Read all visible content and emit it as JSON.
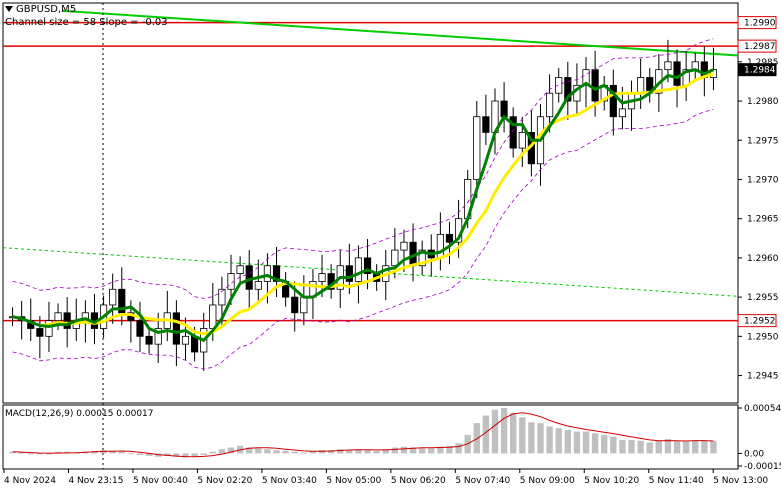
{
  "header": {
    "symbol": "GBPUSD,M5",
    "channel_info": "Channel size = 58 Slope = -0.03"
  },
  "macd": {
    "label": "MACD(12,26,9) 0.00015 0.00017",
    "axis": [
      "0.00054",
      "0.00",
      "-0.00015"
    ]
  },
  "price_axis": {
    "ticks": [
      "1.2985",
      "1.2980",
      "1.2975",
      "1.2970",
      "1.2965",
      "1.2960",
      "1.2955",
      "1.2950",
      "1.2945"
    ],
    "tags": [
      {
        "value": "1.2990",
        "style": "red"
      },
      {
        "value": "1.2987",
        "style": "red"
      },
      {
        "value": "1.2984",
        "style": "dark"
      },
      {
        "value": "1.2952",
        "style": "red"
      }
    ]
  },
  "time_axis": [
    "4 Nov 2024",
    "4 Nov 23:15",
    "5 Nov 00:40",
    "5 Nov 02:20",
    "5 Nov 03:40",
    "5 Nov 05:00",
    "5 Nov 06:20",
    "5 Nov 07:40",
    "5 Nov 09:00",
    "5 Nov 10:20",
    "5 Nov 11:40",
    "5 Nov 13:00"
  ],
  "colors": {
    "red_level": "#e00000",
    "channel_line": "#00cc00",
    "ma_fast": "#008000",
    "ma_slow": "#ffee00",
    "bands": "#a000c0",
    "macd_hist": "#c0c0c0",
    "macd_signal": "#d00000"
  },
  "chart_data": {
    "type": "candlestick",
    "symbol": "GBPUSD",
    "timeframe": "M5",
    "ylim": [
      1.29415,
      1.29925
    ],
    "levels": [
      1.299,
      1.2987,
      1.2952
    ],
    "current_price": 1.2984,
    "close_path": [
      1.29525,
      1.2952,
      1.2951,
      1.295,
      1.2952,
      1.2953,
      1.2951,
      1.2952,
      1.2953,
      1.2951,
      1.2954,
      1.2956,
      1.2953,
      1.2952,
      1.295,
      1.2949,
      1.2951,
      1.2953,
      1.2949,
      1.295,
      1.2948,
      1.2951,
      1.2954,
      1.2956,
      1.2958,
      1.2959,
      1.2956,
      1.2957,
      1.2959,
      1.2957,
      1.2955,
      1.2953,
      1.2955,
      1.2957,
      1.2958,
      1.2956,
      1.2959,
      1.2957,
      1.296,
      1.2958,
      1.2957,
      1.2959,
      1.2961,
      1.2962,
      1.2959,
      1.2961,
      1.296,
      1.2963,
      1.2962,
      1.2965,
      1.297,
      1.2978,
      1.2976,
      1.298,
      1.2978,
      1.2974,
      1.2976,
      1.2972,
      1.2978,
      1.2981,
      1.2983,
      1.298,
      1.2982,
      1.2984,
      1.298,
      1.2982,
      1.2978,
      1.2979,
      1.2981,
      1.2983,
      1.2981,
      1.2984,
      1.2985,
      1.2982,
      1.2984,
      1.2985,
      1.2983,
      1.2984
    ],
    "macd_hist": [
      2e-05,
      1e-05,
      0.0,
      -1e-05,
      0.0,
      2e-05,
      2e-05,
      1e-05,
      2e-05,
      3e-05,
      4e-05,
      3e-05,
      2e-05,
      0.0,
      -2e-05,
      -3e-05,
      -4e-05,
      -3e-05,
      -4e-05,
      -5e-05,
      -4e-05,
      -2e-05,
      2e-05,
      5e-05,
      7e-05,
      9e-05,
      7e-05,
      6e-05,
      5e-05,
      4e-05,
      3e-05,
      2e-05,
      1e-05,
      3e-05,
      4e-05,
      4e-05,
      5e-05,
      4e-05,
      5e-05,
      4e-05,
      3e-05,
      5e-05,
      7e-05,
      8e-05,
      7e-05,
      6e-05,
      6e-05,
      8e-05,
      9e-05,
      0.00012,
      0.00022,
      0.00036,
      0.00045,
      0.00052,
      0.00054,
      0.00048,
      0.00043,
      0.00037,
      0.00036,
      0.00032,
      0.0003,
      0.00028,
      0.00026,
      0.00026,
      0.00024,
      0.00022,
      0.0002,
      0.00016,
      0.00016,
      0.00015,
      0.00013,
      0.00015,
      0.00017,
      0.00015,
      0.00014,
      0.00015,
      0.00015,
      0.00015
    ]
  }
}
